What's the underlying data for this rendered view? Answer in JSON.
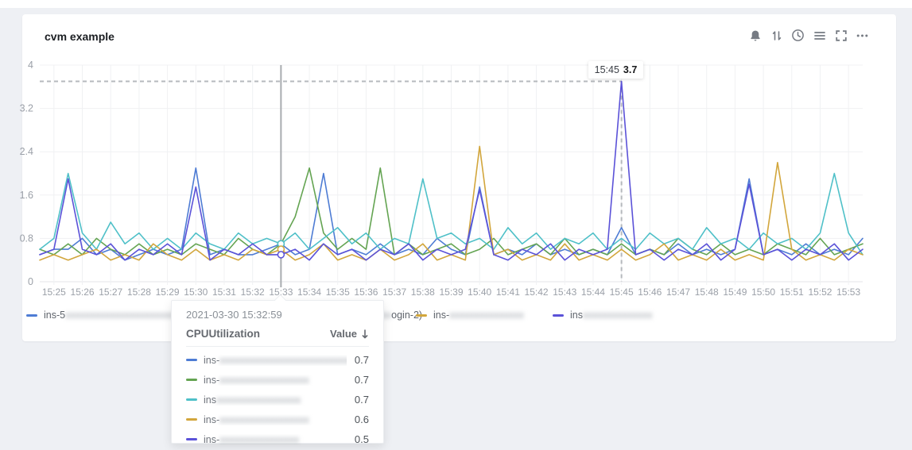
{
  "card": {
    "title": "cvm example",
    "toolbar": [
      "alarm-bell",
      "sort-arrows",
      "time-range-clock",
      "legend-list",
      "fullscreen",
      "more-ellipsis"
    ]
  },
  "colors": {
    "grid": "#f0f1f3",
    "axis_line": "#e4e6ea",
    "axis_text": "#9ba0a8",
    "crosshair": "#a9acb0",
    "max_dash": "#b6b9bd",
    "icon": "#767b83"
  },
  "chart_data": {
    "type": "line",
    "title": "CPUUtilization",
    "ylabel": "",
    "xlabel": "",
    "ylim": [
      0,
      4
    ],
    "y_ticks": [
      0,
      0.8,
      1.6,
      2.4,
      3.2,
      4
    ],
    "grid": true,
    "legend_position": "bottom",
    "x_tick_labels": [
      "15:25",
      "15:26",
      "15:27",
      "15:28",
      "15:29",
      "15:30",
      "15:31",
      "15:32",
      "15:33",
      "15:34",
      "15:35",
      "15:36",
      "15:37",
      "15:38",
      "15:39",
      "15:40",
      "15:41",
      "15:42",
      "15:43",
      "15:44",
      "15:45",
      "15:46",
      "15:47",
      "15:48",
      "15:49",
      "15:50",
      "15:51",
      "15:52",
      "15:53"
    ],
    "sample_interval_seconds": 30,
    "series": [
      {
        "name": "ins-5 (redacted)",
        "color": "#4e7cd4",
        "values": [
          0.5,
          0.6,
          0.6,
          0.8,
          0.5,
          0.6,
          0.4,
          0.5,
          0.6,
          0.5,
          0.6,
          2.1,
          0.5,
          0.6,
          0.5,
          0.5,
          0.6,
          0.7,
          0.5,
          0.6,
          2.0,
          0.5,
          0.6,
          0.5,
          0.7,
          0.5,
          0.6,
          0.5,
          0.8,
          0.6,
          0.5,
          1.75,
          0.5,
          0.6,
          0.5,
          0.7,
          0.5,
          0.6,
          0.5,
          0.6,
          0.5,
          1.0,
          0.5,
          0.6,
          0.5,
          0.7,
          0.5,
          0.6,
          0.5,
          0.6,
          1.9,
          0.5,
          0.6,
          0.5,
          0.7,
          0.5,
          0.6,
          0.5,
          0.8
        ]
      },
      {
        "name": "ins- (redacted)",
        "color": "#64a452",
        "values": [
          0.6,
          0.5,
          0.7,
          0.5,
          0.8,
          0.6,
          0.5,
          0.7,
          0.5,
          0.6,
          0.5,
          0.7,
          0.6,
          0.5,
          0.8,
          0.6,
          0.5,
          0.7,
          1.2,
          2.1,
          0.9,
          0.6,
          0.8,
          0.6,
          2.1,
          0.5,
          0.7,
          0.5,
          0.6,
          0.7,
          0.5,
          0.6,
          0.8,
          0.5,
          0.6,
          0.7,
          0.5,
          0.8,
          0.5,
          0.6,
          0.5,
          0.7,
          0.5,
          0.6,
          0.5,
          0.8,
          0.6,
          0.5,
          0.7,
          0.5,
          0.6,
          0.5,
          0.7,
          0.6,
          0.5,
          0.8,
          0.5,
          0.6,
          0.7
        ]
      },
      {
        "name": "ins- (login-2)",
        "color": "#4fc0c8",
        "values": [
          0.6,
          0.8,
          2.0,
          0.9,
          0.6,
          1.1,
          0.7,
          0.9,
          0.6,
          0.8,
          0.6,
          0.9,
          0.7,
          0.6,
          0.9,
          0.7,
          0.8,
          0.7,
          0.9,
          0.6,
          0.8,
          1.0,
          0.7,
          0.9,
          0.6,
          0.8,
          0.7,
          1.9,
          0.8,
          0.9,
          0.7,
          0.8,
          0.6,
          1.0,
          0.7,
          0.9,
          0.6,
          0.8,
          0.7,
          0.9,
          0.6,
          0.8,
          0.6,
          0.9,
          0.7,
          0.8,
          0.6,
          1.0,
          0.7,
          0.8,
          0.6,
          0.9,
          0.7,
          0.8,
          0.6,
          0.9,
          2.0,
          0.9,
          0.5
        ]
      },
      {
        "name": "ins- (redacted)",
        "color": "#d2a63c",
        "values": [
          0.4,
          0.5,
          0.4,
          0.5,
          0.6,
          0.4,
          0.5,
          0.4,
          0.7,
          0.5,
          0.4,
          0.6,
          0.4,
          0.5,
          0.4,
          0.6,
          0.5,
          0.6,
          0.4,
          0.5,
          0.7,
          0.4,
          0.5,
          0.4,
          0.6,
          0.4,
          0.5,
          0.7,
          0.4,
          0.5,
          0.4,
          2.5,
          0.5,
          0.6,
          0.4,
          0.5,
          0.4,
          0.7,
          0.4,
          0.5,
          0.4,
          0.6,
          0.4,
          0.5,
          0.7,
          0.4,
          0.5,
          0.4,
          0.6,
          0.4,
          0.5,
          0.4,
          2.2,
          0.6,
          0.4,
          0.5,
          0.4,
          0.6,
          0.5
        ]
      },
      {
        "name": "ins- (redacted)",
        "color": "#5b52d8",
        "values": [
          0.5,
          0.6,
          1.9,
          0.6,
          0.5,
          0.7,
          0.4,
          0.6,
          0.5,
          0.7,
          0.5,
          1.75,
          0.4,
          0.6,
          0.5,
          0.7,
          0.5,
          0.5,
          0.6,
          0.4,
          0.7,
          0.5,
          0.6,
          0.4,
          0.6,
          0.5,
          0.7,
          0.4,
          0.6,
          0.5,
          0.6,
          1.7,
          0.5,
          0.4,
          0.6,
          0.5,
          0.7,
          0.4,
          0.6,
          0.5,
          0.6,
          3.7,
          0.5,
          0.6,
          0.4,
          0.6,
          0.5,
          0.7,
          0.4,
          0.6,
          1.8,
          0.5,
          0.6,
          0.4,
          0.6,
          0.5,
          0.7,
          0.4,
          0.6
        ]
      }
    ],
    "crosshair": {
      "index": 17,
      "time": "15:32:59",
      "values": [
        0.7,
        0.7,
        0.7,
        0.6,
        0.5
      ]
    },
    "max_marker": {
      "series_index": 4,
      "index": 41,
      "value": 3.7,
      "time_label": "15:45",
      "value_label": "3.7"
    }
  },
  "max_label": {
    "time": "15:45",
    "value": "3.7"
  },
  "legend": {
    "items": [
      {
        "prefix": "ins-5",
        "redacted": "xxxxxxxxxxxxxxxxxxxxxxxx",
        "suffix": "",
        "color": "#4e7cd4"
      },
      {
        "prefix": "ins-",
        "redacted": "xxxxxxxxxxxxxxxx",
        "suffix": "",
        "color": "#64a452"
      },
      {
        "prefix": "ins-",
        "redacted": "xxxxxxxx",
        "suffix": "ogin-2)",
        "color": "#4fc0c8"
      },
      {
        "prefix": "ins-",
        "redacted": "xxxxxxxxxxxxxxx",
        "suffix": "",
        "color": "#d2a63c"
      },
      {
        "prefix": "ins",
        "redacted": "xxxxxxxxxxxxxx",
        "suffix": "",
        "color": "#5b52d8"
      }
    ]
  },
  "tooltip": {
    "timestamp": "2021-03-30 15:32:59",
    "metric": "CPUUtilization",
    "value_header": "Value",
    "sort_direction": "desc",
    "rows": [
      {
        "prefix": "ins-",
        "redacted": "xxxxxxxxxxxxxxxxxxxxxxxxxxx",
        "value": "0.7",
        "color": "#4e7cd4"
      },
      {
        "prefix": "ins-",
        "redacted": "xxxxxxxxxxxxxxxxxx",
        "value": "0.7",
        "color": "#64a452"
      },
      {
        "prefix": "ins",
        "redacted": "xxxxxxxxxxxxxxxxx",
        "value": "0.7",
        "color": "#4fc0c8"
      },
      {
        "prefix": "ins-",
        "redacted": "xxxxxxxxxxxxxxxxxx",
        "value": "0.6",
        "color": "#d2a63c"
      },
      {
        "prefix": "ins-",
        "redacted": "xxxxxxxxxxxxxxxx",
        "value": "0.5",
        "color": "#5b52d8"
      }
    ]
  }
}
